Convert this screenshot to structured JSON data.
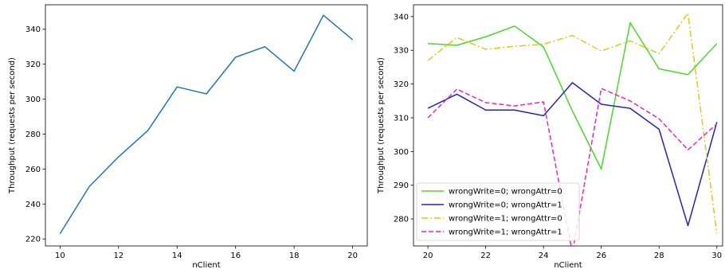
{
  "chart_data": [
    {
      "type": "line",
      "xlabel": "nClient",
      "ylabel": "Throughput (requests per second)",
      "xlim": [
        9.5,
        20.5
      ],
      "ylim": [
        216,
        354
      ],
      "xticks": [
        10,
        12,
        14,
        16,
        18,
        20
      ],
      "yticks": [
        220,
        240,
        260,
        280,
        300,
        320,
        340
      ],
      "x": [
        10,
        11,
        12,
        13,
        14,
        15,
        16,
        17,
        18,
        19,
        20
      ],
      "series": [
        {
          "color": "#1f77b4",
          "dash": "solid",
          "values": [
            223,
            250,
            267,
            282,
            307,
            303,
            324,
            330,
            316,
            348,
            334
          ]
        }
      ]
    },
    {
      "type": "line",
      "xlabel": "nClient",
      "ylabel": "Throughput (requests per second)",
      "xlim": [
        19.5,
        30.2
      ],
      "ylim": [
        272,
        343.5
      ],
      "xticks": [
        20,
        22,
        24,
        26,
        28,
        30
      ],
      "yticks": [
        280,
        290,
        300,
        310,
        320,
        330,
        340
      ],
      "legend_position": "lower-left",
      "x": [
        20,
        21,
        22,
        23,
        24,
        25,
        26,
        27,
        28,
        29,
        30
      ],
      "series": [
        {
          "name": "wrongWrite=0; wrongAttr=0",
          "color": "#44dd22",
          "dash": "solid",
          "values": [
            332,
            331.5,
            334,
            337.2,
            331,
            312,
            294.8,
            338.2,
            324.5,
            322.8,
            332
          ]
        },
        {
          "name": "wrongWrite=0; wrongAttr=1",
          "color": "#2222cc",
          "dash": "solid",
          "values": [
            312.8,
            317,
            312.3,
            312.3,
            310.6,
            320.4,
            314,
            312.8,
            306.6,
            278,
            308.7
          ]
        },
        {
          "name": "wrongWrite=1; wrongAttr=0",
          "color": "#ddcc11",
          "dash": "dashdot",
          "values": [
            327,
            333.8,
            330.3,
            331.2,
            331.8,
            334.4,
            329.8,
            332.8,
            329,
            341,
            275.7
          ]
        },
        {
          "name": "wrongWrite=1; wrongAttr=1",
          "color": "#ee22cc",
          "dash": "dashed",
          "values": [
            310,
            318.5,
            314.5,
            313.5,
            314.7,
            270,
            318.7,
            315,
            309.7,
            300.5,
            308.2
          ]
        }
      ]
    }
  ]
}
